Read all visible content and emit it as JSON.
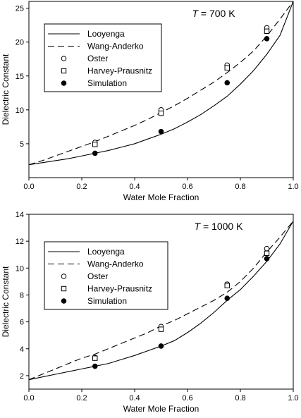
{
  "chart_data": [
    {
      "type": "line",
      "annotation": {
        "var": "T",
        "rest": " = 700 K"
      },
      "xlabel": "Water Mole Fraction",
      "ylabel": "Dielectric Constant",
      "xlim": [
        0.0,
        1.0
      ],
      "ylim": [
        0,
        26
      ],
      "xticks": [
        "0.0",
        "0.2",
        "0.4",
        "0.6",
        "0.8",
        "1.0"
      ],
      "yticks": [
        5,
        10,
        15,
        20,
        25
      ],
      "legend_position": "top-left",
      "series": [
        {
          "name": "Looyenga",
          "style": "solid",
          "x": [
            0.0,
            0.05,
            0.1,
            0.15,
            0.2,
            0.25,
            0.3,
            0.35,
            0.4,
            0.45,
            0.5,
            0.55,
            0.6,
            0.65,
            0.7,
            0.75,
            0.8,
            0.85,
            0.9,
            0.95,
            1.0
          ],
          "y": [
            1.9,
            2.2,
            2.5,
            2.8,
            3.2,
            3.6,
            4.0,
            4.5,
            5.0,
            5.7,
            6.4,
            7.2,
            8.2,
            9.3,
            10.6,
            12.0,
            13.8,
            15.8,
            18.2,
            21.0,
            26.0
          ]
        },
        {
          "name": "Wang-Anderko",
          "style": "dashed",
          "x": [
            0.0,
            0.05,
            0.1,
            0.15,
            0.2,
            0.25,
            0.3,
            0.35,
            0.4,
            0.45,
            0.5,
            0.55,
            0.6,
            0.65,
            0.7,
            0.75,
            0.8,
            0.85,
            0.9,
            0.95,
            1.0
          ],
          "y": [
            1.9,
            2.5,
            3.2,
            3.9,
            4.6,
            5.3,
            6.1,
            6.9,
            7.7,
            8.6,
            9.6,
            10.6,
            11.7,
            12.9,
            14.1,
            15.5,
            17.0,
            18.7,
            20.9,
            23.4,
            26.0
          ]
        },
        {
          "name": "Oster",
          "marker": "open-circle",
          "x": [
            0.25,
            0.5,
            0.75,
            0.9
          ],
          "y": [
            5.2,
            10.0,
            16.6,
            22.1
          ]
        },
        {
          "name": "Harvey-Prausnitz",
          "marker": "open-square",
          "x": [
            0.25,
            0.5,
            0.75,
            0.9
          ],
          "y": [
            4.9,
            9.5,
            16.2,
            21.6
          ]
        },
        {
          "name": "Simulation",
          "marker": "filled-circle",
          "x": [
            0.25,
            0.5,
            0.75,
            0.9
          ],
          "y": [
            3.6,
            6.8,
            14.0,
            20.5
          ]
        }
      ]
    },
    {
      "type": "line",
      "annotation": {
        "var": "T",
        "rest": " = 1000 K"
      },
      "xlabel": "Water Mole Fraction",
      "ylabel": "Dielectric Constant",
      "xlim": [
        0.0,
        1.0
      ],
      "ylim": [
        1.0,
        14.0
      ],
      "xticks": [
        "0.0",
        "0.2",
        "0.4",
        "0.6",
        "0.8",
        "1.0"
      ],
      "yticks": [
        2,
        4,
        6,
        8,
        10,
        12,
        14
      ],
      "legend_position": "top-left",
      "series": [
        {
          "name": "Looyenga",
          "style": "solid",
          "x": [
            0.0,
            0.05,
            0.1,
            0.15,
            0.2,
            0.25,
            0.3,
            0.35,
            0.4,
            0.45,
            0.5,
            0.55,
            0.6,
            0.65,
            0.7,
            0.75,
            0.8,
            0.85,
            0.9,
            0.95,
            1.0
          ],
          "y": [
            1.7,
            1.9,
            2.1,
            2.3,
            2.5,
            2.7,
            2.9,
            3.2,
            3.5,
            3.85,
            4.2,
            4.6,
            5.2,
            5.9,
            6.7,
            7.6,
            8.4,
            9.4,
            10.5,
            11.8,
            13.5
          ]
        },
        {
          "name": "Wang-Anderko",
          "style": "dashed",
          "x": [
            0.0,
            0.05,
            0.1,
            0.15,
            0.2,
            0.25,
            0.3,
            0.35,
            0.4,
            0.45,
            0.5,
            0.55,
            0.6,
            0.65,
            0.7,
            0.75,
            0.8,
            0.85,
            0.9,
            0.95,
            1.0
          ],
          "y": [
            1.7,
            2.1,
            2.5,
            2.9,
            3.3,
            3.6,
            4.0,
            4.4,
            4.8,
            5.2,
            5.7,
            6.1,
            6.6,
            7.1,
            7.6,
            8.2,
            9.0,
            10.0,
            11.2,
            12.3,
            13.5
          ]
        },
        {
          "name": "Oster",
          "marker": "open-circle",
          "x": [
            0.25,
            0.5,
            0.75,
            0.9
          ],
          "y": [
            3.35,
            5.65,
            8.8,
            11.45
          ]
        },
        {
          "name": "Harvey-Prausnitz",
          "marker": "open-square",
          "x": [
            0.25,
            0.5,
            0.75,
            0.9
          ],
          "y": [
            3.3,
            5.45,
            8.7,
            11.1
          ]
        },
        {
          "name": "Simulation",
          "marker": "filled-circle",
          "x": [
            0.25,
            0.5,
            0.75,
            0.9
          ],
          "y": [
            2.7,
            4.2,
            7.75,
            10.7
          ]
        }
      ]
    }
  ]
}
